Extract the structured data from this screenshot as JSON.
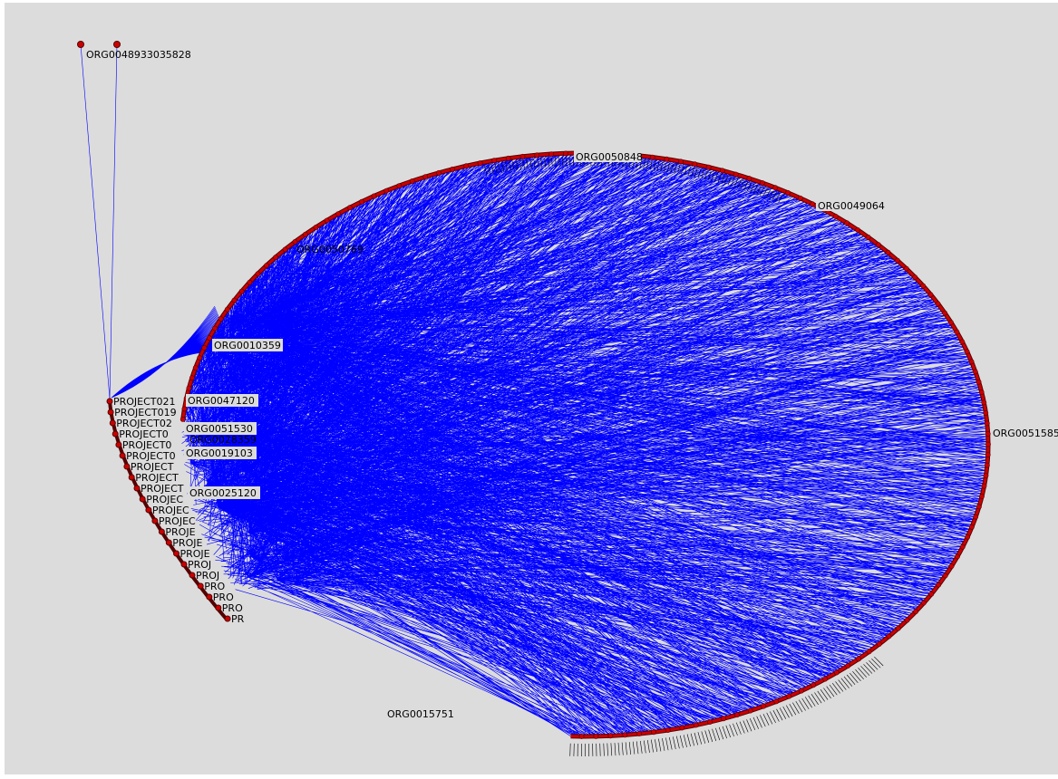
{
  "graph": {
    "colors": {
      "background": "#dcdcdc",
      "edge": "#0000ff",
      "node_fill": "#cc0000",
      "node_stroke": "#550000",
      "label": "#000000"
    },
    "labels": {
      "top_left_org": "ORG0048933035828",
      "ring_top": "ORG0050848",
      "ring_top_right": "ORG0049064",
      "ring_upper_left": "ORG0050769",
      "ring_left_1": "ORG0010359",
      "ring_left_2": "ORG0047120",
      "ring_left_3": "ORG0051530",
      "ring_left_4": "ORG0028359",
      "ring_left_5": "ORG0019103",
      "ring_left_6": "ORG0025120",
      "ring_right": "ORG0051585",
      "ring_bottom": "ORG0015751"
    },
    "project_labels": [
      "PROJECT021",
      "PROJECT019",
      "PROJECT02",
      "PROJECT0",
      "PROJECT0",
      "PROJECT0",
      "PROJECT",
      "PROJECT",
      "PROJECT",
      "PROJEC",
      "PROJEC",
      "PROJEC",
      "PROJE",
      "PROJE",
      "PROJE",
      "PROJ",
      "PROJ",
      "PRO",
      "PRO",
      "PRO",
      "PR"
    ]
  }
}
